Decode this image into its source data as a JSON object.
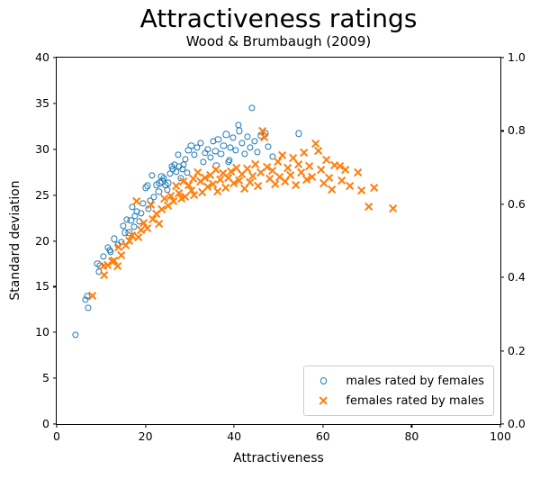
{
  "title": "Attractiveness ratings",
  "subtitle": "Wood & Brumbaugh (2009)",
  "colors": {
    "males_series": "#1f77b4",
    "females_series": "#ff7f0e",
    "axis": "#000000",
    "legend_border": "#cccccc"
  },
  "chart_data": {
    "type": "scatter",
    "title": "Attractiveness ratings",
    "subtitle": "Wood & Brumbaugh (2009)",
    "xlabel": "Attractiveness",
    "ylabel_left": "Standard deviation",
    "ylabel_right": "",
    "xlim": [
      0,
      100
    ],
    "ylim_left": [
      0,
      40
    ],
    "ylim_right": [
      0.0,
      1.0
    ],
    "x_ticks": [
      "0",
      "20",
      "40",
      "60",
      "80",
      "100"
    ],
    "y_ticks_left": [
      "0",
      "5",
      "10",
      "15",
      "20",
      "25",
      "30",
      "35",
      "40"
    ],
    "y_ticks_right": [
      "0.0",
      "0.2",
      "0.4",
      "0.6",
      "0.8",
      "1.0"
    ],
    "grid": false,
    "legend_position": "lower right",
    "series": [
      {
        "name": "males rated by females",
        "marker": "circle",
        "color": "#1f77b4",
        "points": [
          [
            4.2,
            9.7
          ],
          [
            6.4,
            13.6
          ],
          [
            6.8,
            14.0
          ],
          [
            7.1,
            12.7
          ],
          [
            9.2,
            17.5
          ],
          [
            9.5,
            16.6
          ],
          [
            9.8,
            17.3
          ],
          [
            10.5,
            18.3
          ],
          [
            11.5,
            19.3
          ],
          [
            11.9,
            19.0
          ],
          [
            12.2,
            18.8
          ],
          [
            13.0,
            20.2
          ],
          [
            13.8,
            19.6
          ],
          [
            14.6,
            19.9
          ],
          [
            15.0,
            21.6
          ],
          [
            15.4,
            20.9
          ],
          [
            15.8,
            22.3
          ],
          [
            16.3,
            20.9
          ],
          [
            16.7,
            22.2
          ],
          [
            17.0,
            23.7
          ],
          [
            17.4,
            21.5
          ],
          [
            17.7,
            22.7
          ],
          [
            18.1,
            23.2
          ],
          [
            18.6,
            22.1
          ],
          [
            19.0,
            23.0
          ],
          [
            19.5,
            24.1
          ],
          [
            20.1,
            25.8
          ],
          [
            20.4,
            26.0
          ],
          [
            20.6,
            23.5
          ],
          [
            21.0,
            24.4
          ],
          [
            21.5,
            27.1
          ],
          [
            21.9,
            24.8
          ],
          [
            22.5,
            26.1
          ],
          [
            23.0,
            25.4
          ],
          [
            23.2,
            26.3
          ],
          [
            23.6,
            27.0
          ],
          [
            23.8,
            26.5
          ],
          [
            24.2,
            26.8
          ],
          [
            24.5,
            26.1
          ],
          [
            24.9,
            25.6
          ],
          [
            25.2,
            26.3
          ],
          [
            25.6,
            27.3
          ],
          [
            25.9,
            28.1
          ],
          [
            26.2,
            27.8
          ],
          [
            26.6,
            28.3
          ],
          [
            26.9,
            27.5
          ],
          [
            27.3,
            29.4
          ],
          [
            27.6,
            28.1
          ],
          [
            27.9,
            26.8
          ],
          [
            28.3,
            27.8
          ],
          [
            28.6,
            28.3
          ],
          [
            29.0,
            28.9
          ],
          [
            29.4,
            27.4
          ],
          [
            29.7,
            29.9
          ],
          [
            30.3,
            30.4
          ],
          [
            31.0,
            29.4
          ],
          [
            31.7,
            30.2
          ],
          [
            32.4,
            30.7
          ],
          [
            33.0,
            28.6
          ],
          [
            33.5,
            29.6
          ],
          [
            34.0,
            30.0
          ],
          [
            34.6,
            29.1
          ],
          [
            35.2,
            30.9
          ],
          [
            35.8,
            29.8
          ],
          [
            36.0,
            28.2
          ],
          [
            36.4,
            31.1
          ],
          [
            37.0,
            29.5
          ],
          [
            37.6,
            30.4
          ],
          [
            38.2,
            31.6
          ],
          [
            38.7,
            28.6
          ],
          [
            39.0,
            28.8
          ],
          [
            39.2,
            30.2
          ],
          [
            39.8,
            31.3
          ],
          [
            40.4,
            29.9
          ],
          [
            40.9,
            32.6
          ],
          [
            41.2,
            32.0
          ],
          [
            41.8,
            30.7
          ],
          [
            42.4,
            29.5
          ],
          [
            43.0,
            31.4
          ],
          [
            43.6,
            30.2
          ],
          [
            44.0,
            34.5
          ],
          [
            44.6,
            30.9
          ],
          [
            45.2,
            29.7
          ],
          [
            46.0,
            31.5
          ],
          [
            47.1,
            31.7
          ],
          [
            47.7,
            30.3
          ],
          [
            48.6,
            29.2
          ],
          [
            54.6,
            31.7
          ]
        ]
      },
      {
        "name": "females rated by males",
        "marker": "x",
        "color": "#ff7f0e",
        "points": [
          [
            8.0,
            14.0
          ],
          [
            10.5,
            17.2
          ],
          [
            10.6,
            16.3
          ],
          [
            11.5,
            17.3
          ],
          [
            12.4,
            17.7
          ],
          [
            12.9,
            17.8
          ],
          [
            13.6,
            17.2
          ],
          [
            13.9,
            19.3
          ],
          [
            14.5,
            18.4
          ],
          [
            15.5,
            19.5
          ],
          [
            16.4,
            20.0
          ],
          [
            17.0,
            20.6
          ],
          [
            18.0,
            24.3
          ],
          [
            18.3,
            20.4
          ],
          [
            19.0,
            21.2
          ],
          [
            19.6,
            22.0
          ],
          [
            20.4,
            21.4
          ],
          [
            21.1,
            23.9
          ],
          [
            21.7,
            22.4
          ],
          [
            22.5,
            22.9
          ],
          [
            23.1,
            21.9
          ],
          [
            23.7,
            23.4
          ],
          [
            24.3,
            24.6
          ],
          [
            25.0,
            23.8
          ],
          [
            25.7,
            24.9
          ],
          [
            26.3,
            24.3
          ],
          [
            26.9,
            26.0
          ],
          [
            27.5,
            25.2
          ],
          [
            28.1,
            24.6
          ],
          [
            28.6,
            26.5
          ],
          [
            29.0,
            24.8
          ],
          [
            29.7,
            26.1
          ],
          [
            30.3,
            25.5
          ],
          [
            30.7,
            26.8
          ],
          [
            31.0,
            25.0
          ],
          [
            31.7,
            27.5
          ],
          [
            32.4,
            26.5
          ],
          [
            32.7,
            25.3
          ],
          [
            33.3,
            26.9
          ],
          [
            33.9,
            25.9
          ],
          [
            34.5,
            27.2
          ],
          [
            35.1,
            26.2
          ],
          [
            35.7,
            27.8
          ],
          [
            36.3,
            25.4
          ],
          [
            36.9,
            26.7
          ],
          [
            37.5,
            27.4
          ],
          [
            38.1,
            25.8
          ],
          [
            38.7,
            26.9
          ],
          [
            39.3,
            27.6
          ],
          [
            39.9,
            26.3
          ],
          [
            40.5,
            28.0
          ],
          [
            41.1,
            26.6
          ],
          [
            41.7,
            27.3
          ],
          [
            42.3,
            25.7
          ],
          [
            42.9,
            27.9
          ],
          [
            43.5,
            26.4
          ],
          [
            44.1,
            27.1
          ],
          [
            44.7,
            28.4
          ],
          [
            45.3,
            26.0
          ],
          [
            45.9,
            27.5
          ],
          [
            46.4,
            32.0
          ],
          [
            46.8,
            31.3
          ],
          [
            47.3,
            28.1
          ],
          [
            47.9,
            26.8
          ],
          [
            48.5,
            27.7
          ],
          [
            49.1,
            26.2
          ],
          [
            49.7,
            28.6
          ],
          [
            50.3,
            27.0
          ],
          [
            50.9,
            29.3
          ],
          [
            51.5,
            26.5
          ],
          [
            52.1,
            28.0
          ],
          [
            52.7,
            27.2
          ],
          [
            53.3,
            29.0
          ],
          [
            53.9,
            26.1
          ],
          [
            54.5,
            28.4
          ],
          [
            55.1,
            27.5
          ],
          [
            55.7,
            29.6
          ],
          [
            56.3,
            26.7
          ],
          [
            56.9,
            28.2
          ],
          [
            57.5,
            27.0
          ],
          [
            58.3,
            30.6
          ],
          [
            58.9,
            29.8
          ],
          [
            59.5,
            27.8
          ],
          [
            60.1,
            26.3
          ],
          [
            60.7,
            28.8
          ],
          [
            61.3,
            26.9
          ],
          [
            61.9,
            25.6
          ],
          [
            62.5,
            28.3
          ],
          [
            63.7,
            28.2
          ],
          [
            64.1,
            26.6
          ],
          [
            65.0,
            27.8
          ],
          [
            66.0,
            26.0
          ],
          [
            67.8,
            27.5
          ],
          [
            68.6,
            25.5
          ],
          [
            70.3,
            23.7
          ],
          [
            71.5,
            25.8
          ],
          [
            75.8,
            23.5
          ]
        ]
      }
    ]
  }
}
